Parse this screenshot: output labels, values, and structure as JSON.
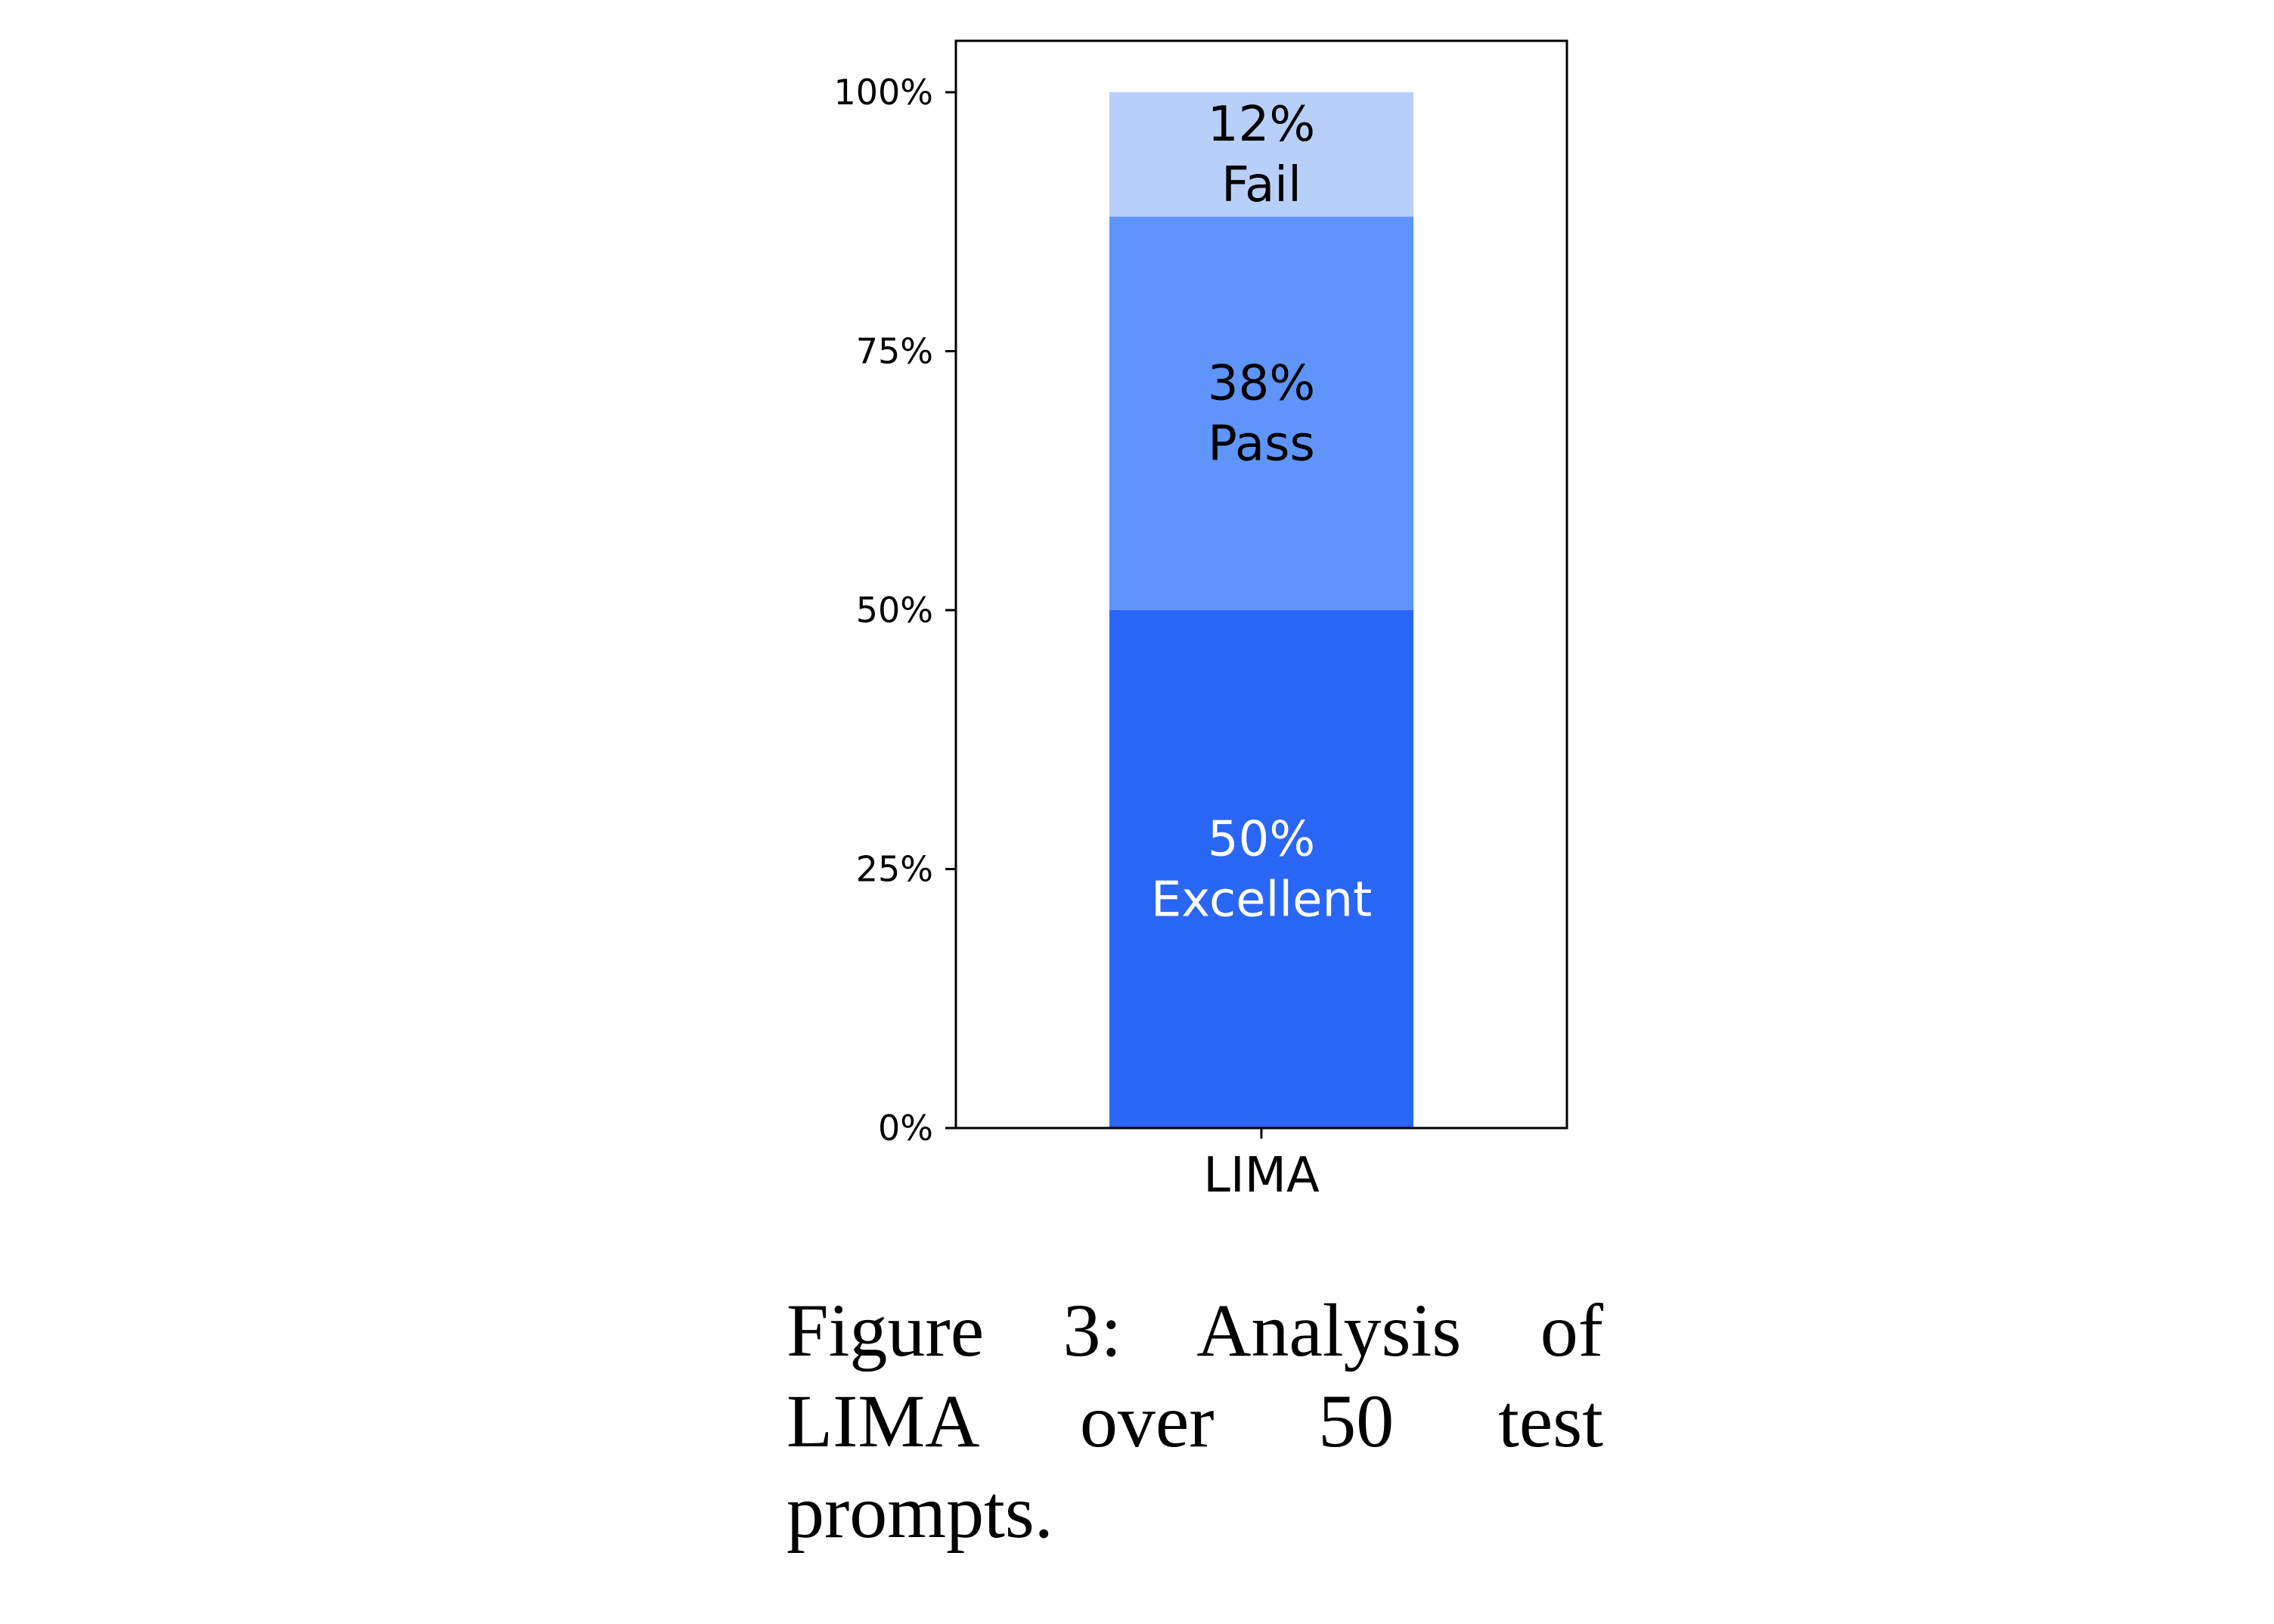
{
  "chart_data": {
    "type": "bar",
    "stacked": true,
    "categories": [
      "LIMA"
    ],
    "series": [
      {
        "name": "Excellent",
        "values": [
          50
        ],
        "label": "50%",
        "color": "#2a66f6",
        "label_color": "#ffffff"
      },
      {
        "name": "Pass",
        "values": [
          38
        ],
        "label": "38%",
        "color": "#5f94fa",
        "label_color": "#000000"
      },
      {
        "name": "Fail",
        "values": [
          12
        ],
        "label": "12%",
        "color": "#b8cffa",
        "label_color": "#000000"
      }
    ],
    "yticks": [
      0,
      25,
      50,
      75,
      100
    ],
    "ytick_labels": [
      "0%",
      "25%",
      "50%",
      "75%",
      "100%"
    ],
    "ylim": [
      0,
      105
    ],
    "xlabel": "",
    "ylabel": "",
    "grid": false
  },
  "caption": {
    "text": "Figure 3: Analysis of LIMA over 50 test prompts."
  }
}
